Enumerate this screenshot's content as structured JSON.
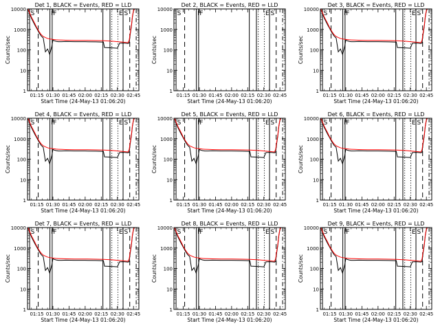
{
  "chart_data": {
    "type": "line",
    "layout": "3x3 grid",
    "y_scale": "log",
    "ylim": [
      1,
      10000
    ],
    "y_ticks": [
      "1",
      "10",
      "100",
      "1000",
      "10000"
    ],
    "ylabel": "Counts/sec",
    "xlabel": "Start Time (24-May-13 01:06:20)",
    "x_ticks": [
      "01:15",
      "01:30",
      "01:45",
      "02:00",
      "02:15",
      "02:30",
      "02:45"
    ],
    "xlim_minutes": [
      66.33,
      170
    ],
    "series_colors": {
      "events": "#000000",
      "lld": "#ff0000"
    },
    "panel_title_suffix": ", BLACK = Events, RED = LLD",
    "panels": [
      {
        "title": "Det 1",
        "has_data": true,
        "flags": [
          "S",
          "F",
          "F",
          "E",
          "S"
        ]
      },
      {
        "title": "Det 2",
        "has_data": false,
        "flags": [
          "S",
          "F",
          "F",
          "E",
          "S"
        ]
      },
      {
        "title": "Det 3",
        "has_data": true,
        "flags": [
          "S",
          "F",
          "F",
          "E",
          "S"
        ]
      },
      {
        "title": "Det 4",
        "has_data": true,
        "flags": [
          "S",
          "F",
          "F",
          "E",
          "S"
        ]
      },
      {
        "title": "Det 5",
        "has_data": true,
        "flags": [
          "S",
          "F",
          "F",
          "E",
          "S"
        ]
      },
      {
        "title": "Det 6",
        "has_data": true,
        "flags": [
          "S",
          "F",
          "F",
          "E",
          "S"
        ]
      },
      {
        "title": "Det 7",
        "has_data": true,
        "flags": [
          "S",
          "F",
          "F",
          "E",
          "S"
        ]
      },
      {
        "title": "Det 8",
        "has_data": true,
        "flags": [
          "S",
          "F",
          "F",
          "E",
          "S"
        ]
      },
      {
        "title": "Det 9",
        "has_data": true,
        "flags": [
          "S",
          "F",
          "F",
          "E",
          "S"
        ]
      }
    ],
    "events_series": {
      "x": [
        67,
        70,
        73,
        75,
        77,
        79,
        81,
        83,
        85,
        87,
        89,
        90,
        91,
        93,
        95,
        98,
        102,
        110,
        120,
        130,
        137,
        138,
        145,
        150,
        152,
        155,
        158,
        160,
        161,
        162,
        163,
        164,
        165,
        166
      ],
      "y": [
        9000,
        3500,
        1700,
        1100,
        700,
        480,
        380,
        80,
        110,
        60,
        150,
        300,
        280,
        260,
        250,
        250,
        255,
        250,
        250,
        245,
        240,
        130,
        125,
        120,
        210,
        215,
        210,
        205,
        220,
        600,
        1300,
        4000,
        8000,
        10000
      ]
    },
    "lld_series": {
      "x": [
        67,
        70,
        73,
        75,
        77,
        79,
        81,
        83,
        85,
        87,
        89,
        91,
        93,
        95,
        98,
        102,
        110,
        120,
        130,
        137,
        145,
        150,
        155,
        158,
        160,
        161,
        162,
        163,
        164,
        165,
        166
      ],
      "y": [
        9500,
        4000,
        2000,
        1200,
        800,
        560,
        450,
        400,
        360,
        340,
        330,
        320,
        310,
        305,
        300,
        295,
        290,
        290,
        285,
        280,
        265,
        250,
        240,
        230,
        225,
        300,
        700,
        1500,
        4500,
        8500,
        10000
      ]
    },
    "vlines": [
      {
        "x": 68.3,
        "style": "solid"
      },
      {
        "x": 76.3,
        "style": "dashed"
      },
      {
        "x": 87.2,
        "style": "solid"
      },
      {
        "x": 89.3,
        "style": "solid"
      },
      {
        "x": 136.5,
        "style": "solid"
      },
      {
        "x": 143.1,
        "style": "solid"
      },
      {
        "x": 144.8,
        "style": "dotted"
      },
      {
        "x": 150.5,
        "style": "dotted"
      },
      {
        "x": 155.3,
        "style": "solid"
      },
      {
        "x": 161.5,
        "style": "dashed"
      },
      {
        "x": 167.5,
        "style": "dashdot"
      }
    ]
  }
}
